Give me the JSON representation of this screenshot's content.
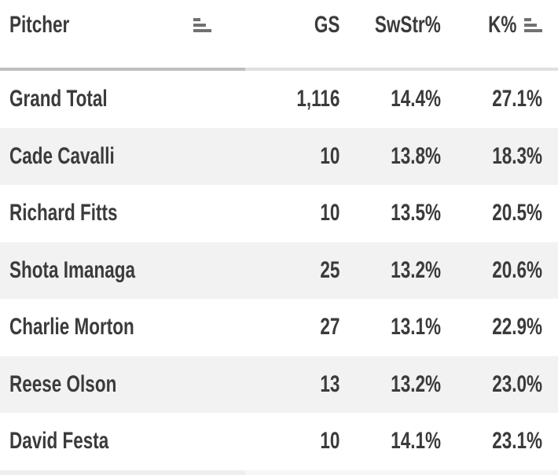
{
  "table": {
    "columns": [
      {
        "label": "Pitcher",
        "sortable": true,
        "sort_icon": "sort-bars-ascending"
      },
      {
        "label": "GS",
        "sortable": true
      },
      {
        "label": "SwStr%",
        "sortable": true
      },
      {
        "label": "K%",
        "sortable": true,
        "sort_icon": "sort-bars-ascending"
      }
    ],
    "rows": [
      {
        "pitcher": "Grand Total",
        "gs": "1,116",
        "swstr": "14.4%",
        "k": "27.1%"
      },
      {
        "pitcher": "Cade Cavalli",
        "gs": "10",
        "swstr": "13.8%",
        "k": "18.3%"
      },
      {
        "pitcher": "Richard Fitts",
        "gs": "10",
        "swstr": "13.5%",
        "k": "20.5%"
      },
      {
        "pitcher": "Shota Imanaga",
        "gs": "25",
        "swstr": "13.2%",
        "k": "20.6%"
      },
      {
        "pitcher": "Charlie Morton",
        "gs": "27",
        "swstr": "13.1%",
        "k": "22.9%"
      },
      {
        "pitcher": "Reese Olson",
        "gs": "13",
        "swstr": "13.2%",
        "k": "23.0%"
      },
      {
        "pitcher": "David Festa",
        "gs": "10",
        "swstr": "14.1%",
        "k": "23.1%"
      }
    ],
    "colors": {
      "text": "#3b3b3b",
      "row_stripe": "#f2f2f2",
      "background": "#ffffff",
      "scrollbar_track": "#e0e0e0",
      "scrollbar_thumb": "#bfbfbf",
      "sort_icon": "#717171"
    }
  },
  "chart_data": {
    "type": "table",
    "columns": [
      "Pitcher",
      "GS",
      "SwStr%",
      "K%"
    ],
    "rows": [
      [
        "Grand Total",
        "1,116",
        "14.4%",
        "27.1%"
      ],
      [
        "Cade Cavalli",
        "10",
        "13.8%",
        "18.3%"
      ],
      [
        "Richard Fitts",
        "10",
        "13.5%",
        "20.5%"
      ],
      [
        "Shota Imanaga",
        "25",
        "13.2%",
        "20.6%"
      ],
      [
        "Charlie Morton",
        "27",
        "13.1%",
        "22.9%"
      ],
      [
        "Reese Olson",
        "13",
        "13.2%",
        "23.0%"
      ],
      [
        "David Festa",
        "10",
        "14.1%",
        "23.1%"
      ]
    ]
  }
}
